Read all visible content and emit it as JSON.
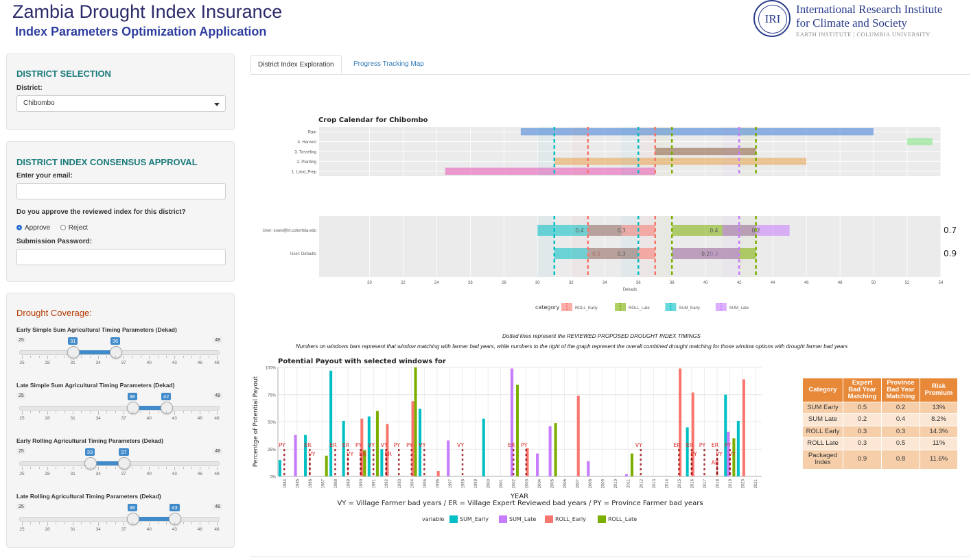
{
  "header": {
    "title": "Zambia Drought Index Insurance",
    "subtitle": "Index Parameters Optimization Application",
    "logo": {
      "mark": "IRI",
      "line1": "International Research Institute",
      "line2": "for Climate and Society",
      "line3": "EARTH INSTITUTE | COLUMBIA UNIVERSITY"
    }
  },
  "district_selection": {
    "title": "DISTRICT SELECTION",
    "district_label": "District:",
    "district_value": "Chibombo"
  },
  "consensus": {
    "title": "DISTRICT INDEX CONSENSUS APPROVAL",
    "email_label": "Enter your email:",
    "email_value": "",
    "question": "Do you approve the reviewed index for this district?",
    "approve_label": "Approve",
    "reject_label": "Reject",
    "selected": "Approve",
    "password_label": "Submission Password:",
    "password_value": ""
  },
  "drought": {
    "title": "Drought Coverage:",
    "sliders": [
      {
        "label": "Early Simple Sum Agricultural Timing Parameters (Dekad)",
        "min": 25,
        "max": 48,
        "from": 31,
        "to": 36
      },
      {
        "label": "Late Simple Sum Agricultural Timing Parameters (Dekad)",
        "min": 25,
        "max": 48,
        "from": 38,
        "to": 42
      },
      {
        "label": "Early Rolling Agricultural Timing Parameters (Dekad)",
        "min": 25,
        "max": 48,
        "from": 33,
        "to": 37
      },
      {
        "label": "Late Rolling Agricultural Timing Parameters (Dekad)",
        "min": 25,
        "max": 48,
        "from": 38,
        "to": 43
      }
    ],
    "tick_labels": [
      "25",
      "28",
      "31",
      "34",
      "37",
      "40",
      "43",
      "46",
      "48"
    ],
    "tick_values": [
      25,
      28,
      31,
      34,
      37,
      40,
      43,
      46,
      48
    ]
  },
  "tabs": [
    {
      "label": "District Index Exploration",
      "active": true
    },
    {
      "label": "Progress Tracking Map",
      "active": false
    }
  ],
  "notes": {
    "dotted": "Dotted lines represent the REVIEWED PROPOSED DROUGHT INDEX TIMINGS",
    "numbers": "Numbers on windows bars represent that window matching with farmer bad years, while numbers to the right of the graph represent the overall combined drought matching for those window options with drought farmer bad years"
  },
  "colors": {
    "roll_early": "#f8766d",
    "roll_late": "#7cae00",
    "sum_early": "#00bfc4",
    "sum_late": "#c77cff",
    "dark_red": "#9b0d14",
    "panel_title": "#1a7a7a",
    "drought_title": "#b53a00",
    "table_header": "#e8893a"
  },
  "chart_data": [
    {
      "type": "bar",
      "title": "Crop Calendar for Chibombo",
      "xlabel": "Dekads",
      "categories": [
        "Rain",
        "4. Harvest",
        "3. Tasseling",
        "2. Planting",
        "1. Land_Prep"
      ],
      "x_ticks": [
        20,
        22,
        24,
        26,
        28,
        30,
        32,
        34,
        36,
        38,
        40,
        42,
        44,
        46,
        48,
        50,
        52,
        54
      ],
      "xlim": [
        17,
        54
      ],
      "ranges": [
        {
          "category": "Rain",
          "start": 29,
          "end": 50,
          "color": "#3a7bd5"
        },
        {
          "category": "4. Harvest",
          "start": 52,
          "end": 53.5,
          "color": "#7de57d"
        },
        {
          "category": "3. Tasseling",
          "start": 37,
          "end": 43,
          "color": "#8b5a3c"
        },
        {
          "category": "2. Planting",
          "start": 31,
          "end": 46,
          "color": "#e8a14a"
        },
        {
          "category": "1. Land_Prep",
          "start": 24.5,
          "end": 37,
          "color": "#e754b4"
        }
      ],
      "vlines": [
        {
          "x": 31,
          "series": "SUM_Early"
        },
        {
          "x": 36,
          "series": "SUM_Early"
        },
        {
          "x": 33,
          "series": "ROLL_Early"
        },
        {
          "x": 37,
          "series": "ROLL_Early"
        },
        {
          "x": 38,
          "series": "ROLL_Late"
        },
        {
          "x": 43,
          "series": "ROLL_Late"
        },
        {
          "x": 42,
          "series": "SUM_Late"
        }
      ],
      "legend_title": "category",
      "legend": [
        "ROLL_Early",
        "ROLL_Late",
        "SUM_Early",
        "SUM_Late"
      ],
      "users": [
        {
          "label": "User: souni@iri.columbia.edu",
          "overall": "0.7",
          "windows": [
            {
              "series": "SUM_Early",
              "start": 30,
              "end": 35,
              "label": "0.4"
            },
            {
              "series": "ROLL_Early",
              "start": 33,
              "end": 37,
              "label": "0.3"
            },
            {
              "series": "ROLL_Late",
              "start": 38,
              "end": 43,
              "label": "0.4"
            },
            {
              "series": "SUM_Late",
              "start": 41,
              "end": 45,
              "label": "0.2"
            }
          ]
        },
        {
          "label": "User: Defaults",
          "overall": "0.9",
          "windows": [
            {
              "series": "SUM_Early",
              "start": 31,
              "end": 36,
              "label": "0.5"
            },
            {
              "series": "ROLL_Early",
              "start": 33,
              "end": 37,
              "label": "0.3"
            },
            {
              "series": "ROLL_Late",
              "start": 38,
              "end": 43,
              "label": "0.3"
            },
            {
              "series": "SUM_Late",
              "start": 38,
              "end": 42,
              "label": "0.2"
            }
          ]
        }
      ]
    },
    {
      "type": "bar",
      "title": "Potential Payout with selected windows for",
      "xlabel": "YEAR",
      "ylabel": "Percentge of Potential Payout",
      "subtitle": "VY = Village Farmer bad years / ER = Village Expert Reviewed bad years / PY = Province Farmer bad years",
      "ylim": [
        0,
        100
      ],
      "y_ticks": [
        "0%",
        "25%",
        "50%",
        "75%",
        "100%"
      ],
      "categories": [
        "1984",
        "1985",
        "1986",
        "1987",
        "1988",
        "1989",
        "1990",
        "1991",
        "1992",
        "1993",
        "1994",
        "1995",
        "1996",
        "1997",
        "1998",
        "1999",
        "2000",
        "2001",
        "2002",
        "2003",
        "2004",
        "2005",
        "2006",
        "2007",
        "2008",
        "2009",
        "2010",
        "2011",
        "2012",
        "2013",
        "2014",
        "2015",
        "2016",
        "2017",
        "2018",
        "2019",
        "2020",
        "2021"
      ],
      "series": [
        {
          "name": "SUM_Early",
          "values": [
            15,
            0,
            38,
            0,
            97,
            51,
            0,
            55,
            25,
            0,
            0,
            62,
            0,
            0,
            0,
            0,
            53,
            0,
            0,
            0,
            0,
            0,
            0,
            0,
            0,
            0,
            0,
            0,
            0,
            0,
            0,
            0,
            45,
            0,
            0,
            75,
            51,
            0
          ]
        },
        {
          "name": "SUM_Late",
          "values": [
            0,
            38,
            0,
            0,
            0,
            0,
            0,
            0,
            0,
            0,
            0,
            0,
            0,
            33,
            0,
            0,
            0,
            0,
            99,
            0,
            21,
            46,
            0,
            0,
            14,
            0,
            0,
            2,
            0,
            0,
            0,
            0,
            0,
            0,
            0,
            41,
            0,
            0
          ]
        },
        {
          "name": "ROLL_Early",
          "values": [
            0,
            0,
            0,
            0,
            0,
            0,
            53,
            0,
            48,
            0,
            69,
            0,
            5,
            0,
            0,
            0,
            0,
            0,
            0,
            26,
            0,
            0,
            0,
            74,
            0,
            0,
            0,
            0,
            0,
            0,
            0,
            99,
            77,
            0,
            0,
            0,
            89,
            0
          ]
        },
        {
          "name": "ROLL_Late",
          "values": [
            0,
            0,
            0,
            19,
            0,
            0,
            24,
            60,
            0,
            0,
            100,
            0,
            0,
            0,
            0,
            0,
            0,
            0,
            84,
            0,
            0,
            49,
            0,
            0,
            0,
            0,
            0,
            21,
            0,
            0,
            0,
            0,
            0,
            0,
            0,
            35,
            0,
            0
          ]
        }
      ],
      "markers": [
        {
          "year": "1984",
          "label": "PY"
        },
        {
          "year": "1986",
          "label": "ER"
        },
        {
          "year": "1986",
          "label": "VY"
        },
        {
          "year": "1988",
          "label": "ER"
        },
        {
          "year": "1989",
          "label": "ER"
        },
        {
          "year": "1989",
          "label": "VY"
        },
        {
          "year": "1990",
          "label": "PY"
        },
        {
          "year": "1990",
          "label": "ER"
        },
        {
          "year": "1991",
          "label": "VY"
        },
        {
          "year": "1992",
          "label": "VY"
        },
        {
          "year": "1992",
          "label": "ER"
        },
        {
          "year": "1993",
          "label": "PY"
        },
        {
          "year": "1994",
          "label": "PY"
        },
        {
          "year": "1995",
          "label": "VY"
        },
        {
          "year": "1998",
          "label": "VY"
        },
        {
          "year": "2002",
          "label": "ER"
        },
        {
          "year": "2003",
          "label": "PY"
        },
        {
          "year": "2012",
          "label": "VY"
        },
        {
          "year": "2015",
          "label": "ER"
        },
        {
          "year": "2016",
          "label": "ER"
        },
        {
          "year": "2016",
          "label": "PY"
        },
        {
          "year": "2017",
          "label": "PY"
        },
        {
          "year": "2018",
          "label": "ER"
        },
        {
          "year": "2018",
          "label": "PY"
        },
        {
          "year": "2018",
          "label": "AB"
        },
        {
          "year": "2019",
          "label": "PY"
        },
        {
          "year": "2019",
          "label": "VY"
        }
      ],
      "legend_title": "variable",
      "legend": [
        "SUM_Early",
        "SUM_Late",
        "ROLL_Early",
        "ROLL_Late"
      ]
    },
    {
      "type": "table",
      "columns": [
        "Category",
        "Expert Bad Year Matching",
        "Province Bad Year Matching",
        "Risk Premium"
      ],
      "rows": [
        [
          "SUM Early",
          "0.5",
          "0.2",
          "13%"
        ],
        [
          "SUM Late",
          "0.2",
          "0.4",
          "8.2%"
        ],
        [
          "ROLL Early",
          "0.3",
          "0.3",
          "14.3%"
        ],
        [
          "ROLL Late",
          "0.3",
          "0.5",
          "11%"
        ],
        [
          "Packaged Index",
          "0.9",
          "0.8",
          "11.6%"
        ]
      ]
    }
  ]
}
